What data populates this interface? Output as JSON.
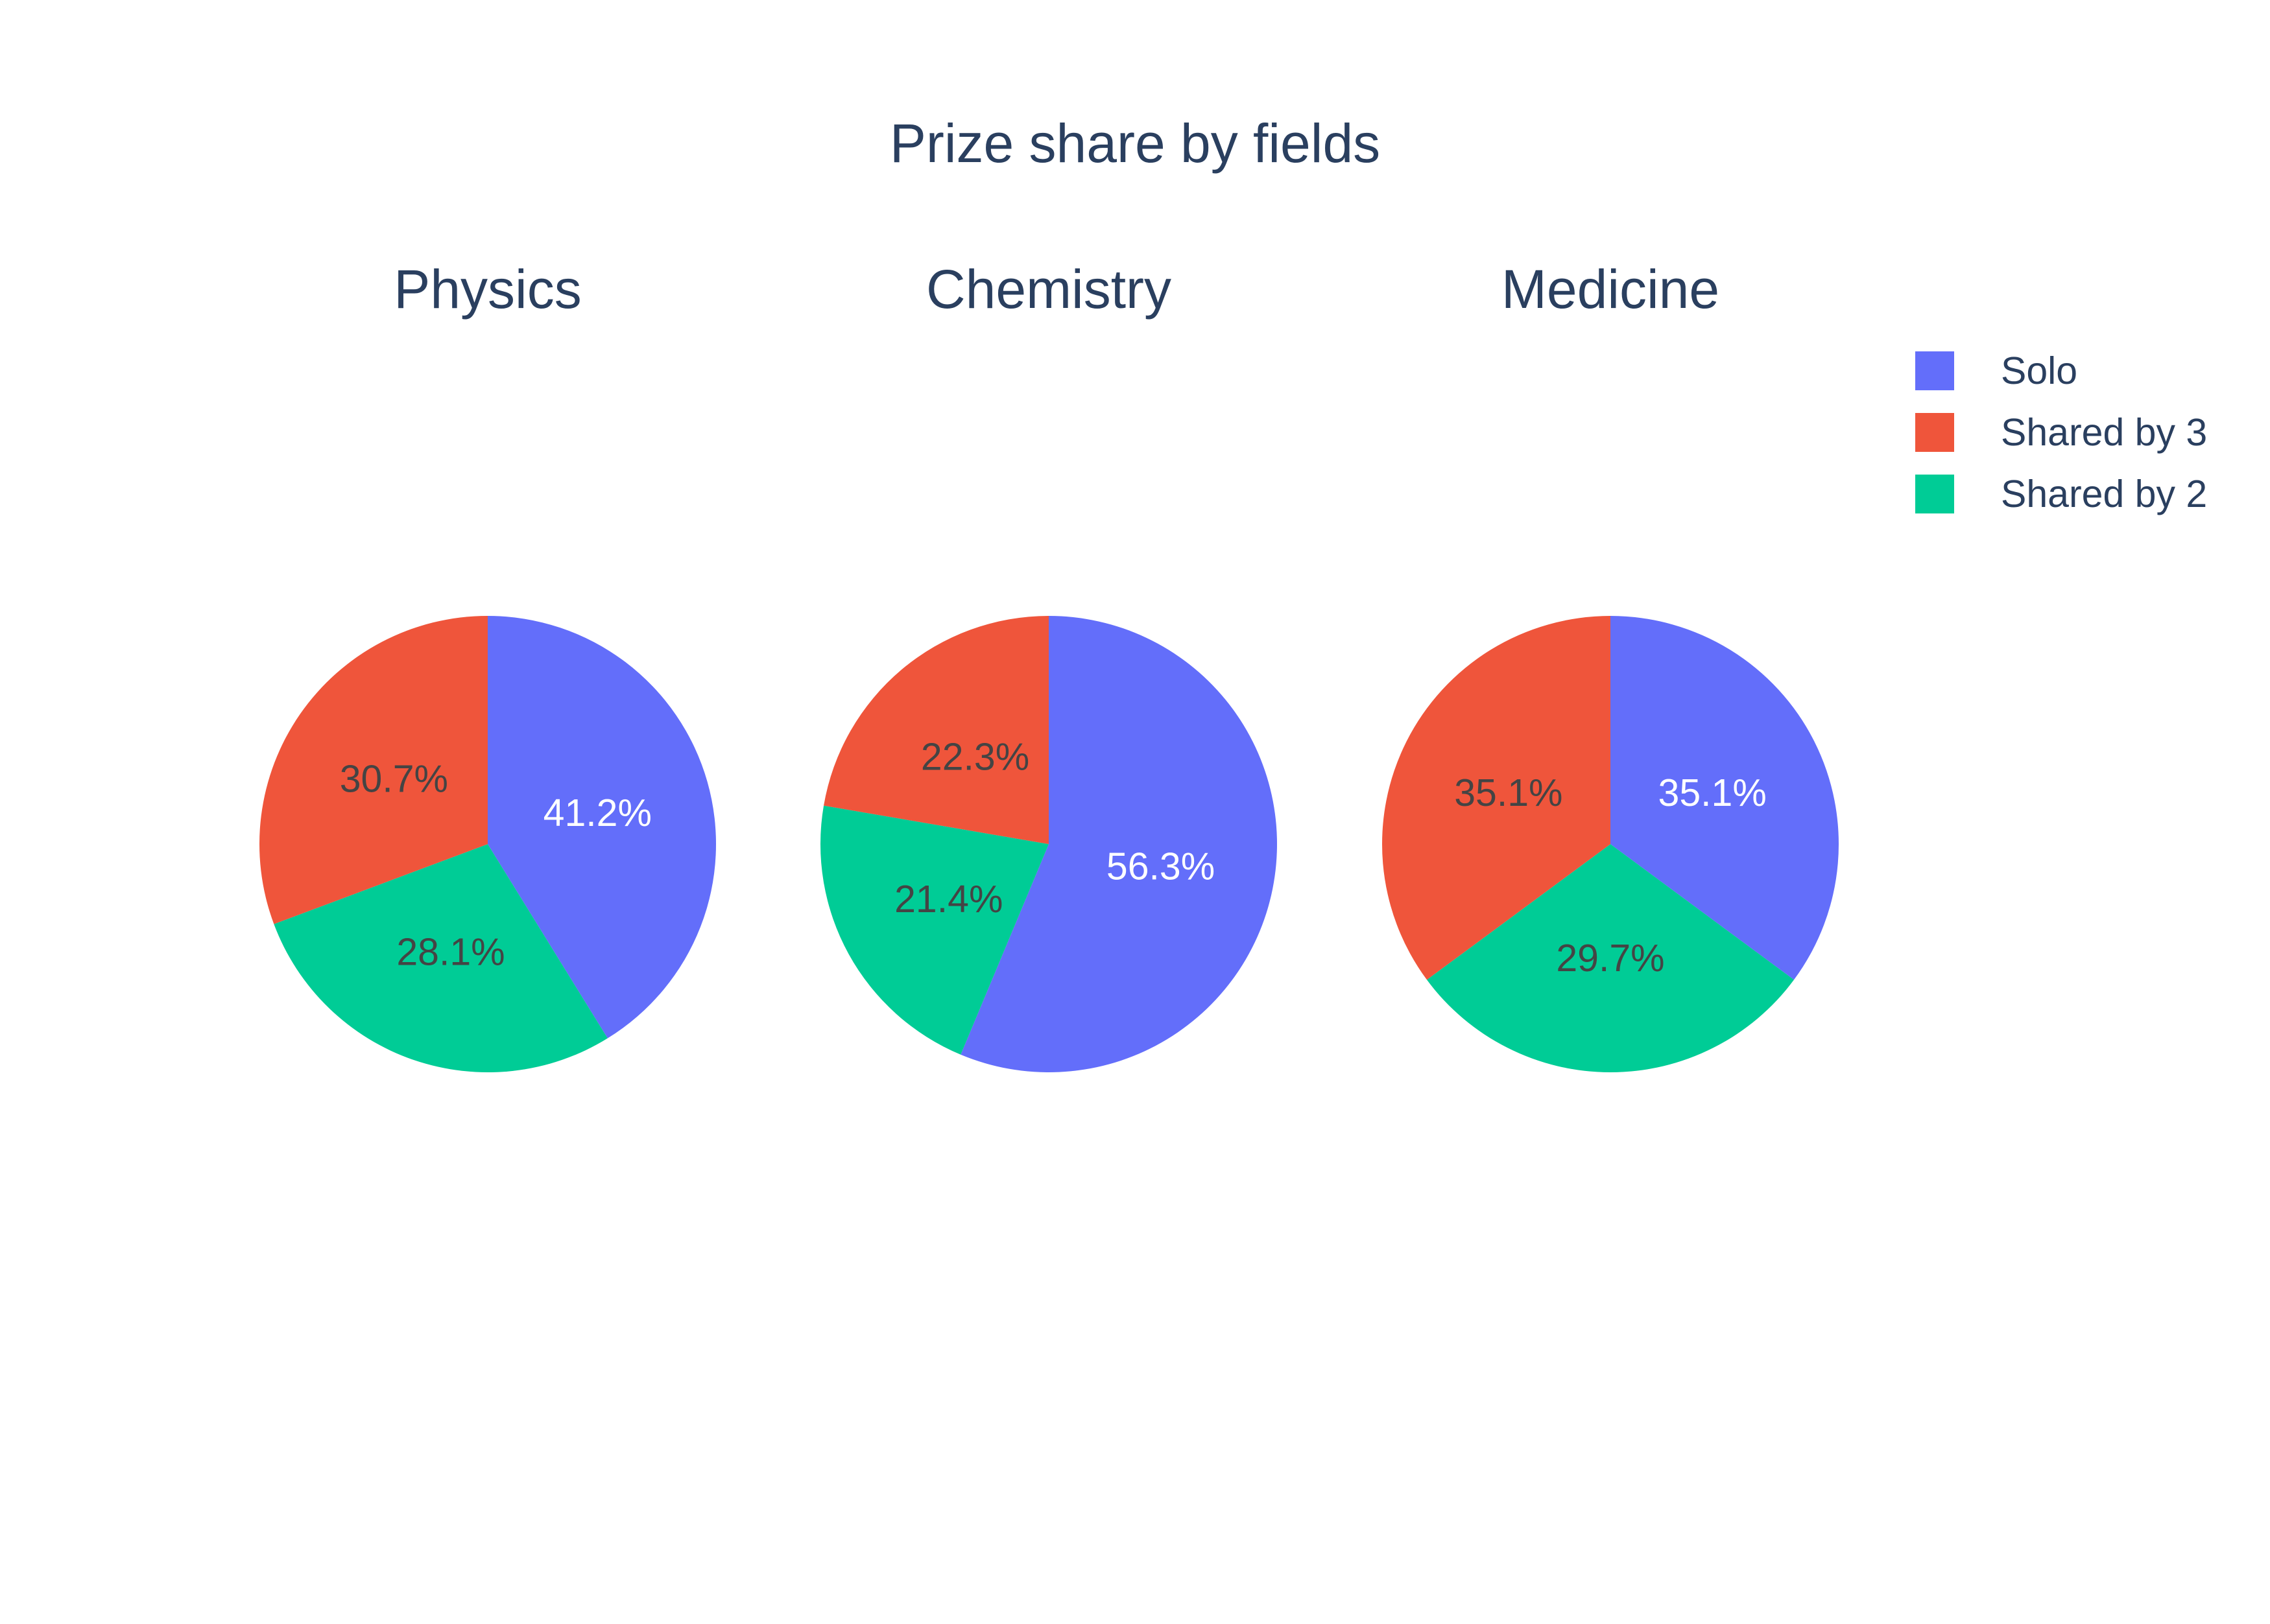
{
  "chart_data": {
    "type": "pie",
    "title": "Prize share by fields",
    "labels": [
      "Solo",
      "Shared by 3",
      "Shared by 2"
    ],
    "colors": {
      "Solo": "#636efa",
      "Shared by 3": "#ef553b",
      "Shared by 2": "#00cc96"
    },
    "text_colors": {
      "Solo": "#ffffff",
      "Shared by 3": "#444444",
      "Shared by 2": "#444444"
    },
    "legend_placement": "top-right",
    "pies": [
      {
        "name": "Physics",
        "slices": [
          {
            "label": "Solo",
            "percent": 41.2,
            "text": "41.2%"
          },
          {
            "label": "Shared by 2",
            "percent": 28.1,
            "text": "28.1%"
          },
          {
            "label": "Shared by 3",
            "percent": 30.7,
            "text": "30.7%"
          }
        ]
      },
      {
        "name": "Chemistry",
        "slices": [
          {
            "label": "Solo",
            "percent": 56.3,
            "text": "56.3%"
          },
          {
            "label": "Shared by 2",
            "percent": 21.4,
            "text": "21.4%"
          },
          {
            "label": "Shared by 3",
            "percent": 22.3,
            "text": "22.3%"
          }
        ]
      },
      {
        "name": "Medicine",
        "slices": [
          {
            "label": "Solo",
            "percent": 35.1,
            "text": "35.1%"
          },
          {
            "label": "Shared by 2",
            "percent": 29.7,
            "text": "29.7%"
          },
          {
            "label": "Shared by 3",
            "percent": 35.1,
            "text": "35.1%"
          }
        ]
      }
    ]
  }
}
